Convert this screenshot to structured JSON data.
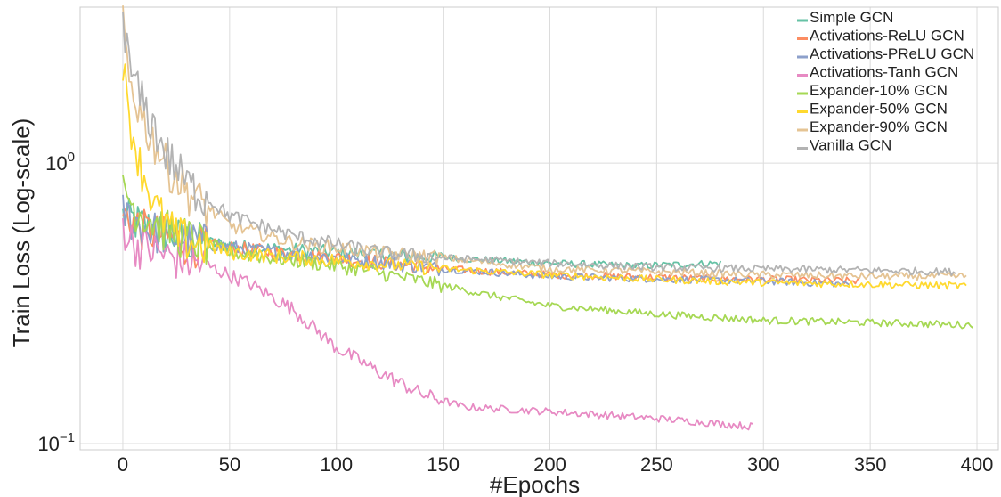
{
  "chart_data": {
    "type": "line",
    "title": "",
    "xlabel": "#Epochs",
    "ylabel": "Train Loss (Log-scale)",
    "xlim": [
      -20,
      410
    ],
    "ylim": [
      0.095,
      3.6
    ],
    "yscale": "log",
    "grid": true,
    "legend_position": "top-right",
    "x_ticks": [
      0,
      50,
      100,
      150,
      200,
      250,
      300,
      350,
      400
    ],
    "x_tick_labels": [
      "0",
      "50",
      "100",
      "150",
      "200",
      "250",
      "300",
      "350",
      "400"
    ],
    "y_ticks": [
      1,
      0.1
    ],
    "y_tick_labels": [
      {
        "base": "10",
        "exp": "0"
      },
      {
        "base": "10",
        "exp": "−1"
      }
    ],
    "series": [
      {
        "name": "Simple GCN",
        "color": "#66c2a5",
        "last_epoch": 280,
        "points": [
          [
            0,
            0.65
          ],
          [
            10,
            0.6
          ],
          [
            30,
            0.53
          ],
          [
            60,
            0.5
          ],
          [
            100,
            0.48
          ],
          [
            150,
            0.46
          ],
          [
            200,
            0.44
          ],
          [
            240,
            0.43
          ],
          [
            280,
            0.44
          ]
        ]
      },
      {
        "name": "Activations-ReLU GCN",
        "color": "#fc8d62",
        "last_epoch": 345,
        "points": [
          [
            0,
            0.66
          ],
          [
            10,
            0.58
          ],
          [
            30,
            0.52
          ],
          [
            60,
            0.49
          ],
          [
            100,
            0.46
          ],
          [
            150,
            0.42
          ],
          [
            200,
            0.4
          ],
          [
            260,
            0.39
          ],
          [
            300,
            0.385
          ],
          [
            345,
            0.38
          ]
        ]
      },
      {
        "name": "Activations-PReLU GCN",
        "color": "#8da0cb",
        "last_epoch": 340,
        "points": [
          [
            0,
            0.67
          ],
          [
            10,
            0.59
          ],
          [
            30,
            0.53
          ],
          [
            60,
            0.49
          ],
          [
            100,
            0.46
          ],
          [
            150,
            0.42
          ],
          [
            200,
            0.395
          ],
          [
            260,
            0.385
          ],
          [
            300,
            0.38
          ],
          [
            340,
            0.37
          ]
        ]
      },
      {
        "name": "Activations-Tanh GCN",
        "color": "#e78ac3",
        "last_epoch": 295,
        "points": [
          [
            0,
            0.6
          ],
          [
            5,
            0.52
          ],
          [
            20,
            0.47
          ],
          [
            40,
            0.43
          ],
          [
            60,
            0.37
          ],
          [
            80,
            0.3
          ],
          [
            100,
            0.22
          ],
          [
            120,
            0.18
          ],
          [
            140,
            0.15
          ],
          [
            160,
            0.135
          ],
          [
            200,
            0.13
          ],
          [
            250,
            0.123
          ],
          [
            295,
            0.115
          ]
        ]
      },
      {
        "name": "Expander-10% GCN",
        "color": "#a6d854",
        "last_epoch": 398,
        "points": [
          [
            0,
            0.85
          ],
          [
            5,
            0.7
          ],
          [
            20,
            0.58
          ],
          [
            50,
            0.48
          ],
          [
            80,
            0.45
          ],
          [
            110,
            0.42
          ],
          [
            140,
            0.38
          ],
          [
            170,
            0.34
          ],
          [
            200,
            0.31
          ],
          [
            250,
            0.29
          ],
          [
            300,
            0.275
          ],
          [
            350,
            0.27
          ],
          [
            398,
            0.265
          ]
        ]
      },
      {
        "name": "Expander-50% GCN",
        "color": "#ffd92f",
        "last_epoch": 395,
        "points": [
          [
            0,
            2.4
          ],
          [
            2,
            1.6
          ],
          [
            8,
            1.0
          ],
          [
            15,
            0.7
          ],
          [
            25,
            0.55
          ],
          [
            50,
            0.48
          ],
          [
            100,
            0.45
          ],
          [
            150,
            0.42
          ],
          [
            200,
            0.4
          ],
          [
            250,
            0.385
          ],
          [
            300,
            0.375
          ],
          [
            350,
            0.37
          ],
          [
            395,
            0.365
          ]
        ]
      },
      {
        "name": "Expander-90% GCN",
        "color": "#e5c494",
        "last_epoch": 395,
        "points": [
          [
            0,
            3.1
          ],
          [
            3,
            2.0
          ],
          [
            10,
            1.4
          ],
          [
            20,
            1.0
          ],
          [
            30,
            0.8
          ],
          [
            50,
            0.6
          ],
          [
            80,
            0.52
          ],
          [
            120,
            0.48
          ],
          [
            150,
            0.46
          ],
          [
            200,
            0.42
          ],
          [
            250,
            0.41
          ],
          [
            300,
            0.4
          ],
          [
            350,
            0.395
          ],
          [
            395,
            0.395
          ]
        ]
      },
      {
        "name": "Vanilla GCN",
        "color": "#b3b3b3",
        "last_epoch": 390,
        "points": [
          [
            0,
            3.5
          ],
          [
            3,
            2.2
          ],
          [
            10,
            1.6
          ],
          [
            20,
            1.1
          ],
          [
            30,
            0.85
          ],
          [
            50,
            0.65
          ],
          [
            80,
            0.55
          ],
          [
            120,
            0.48
          ],
          [
            150,
            0.46
          ],
          [
            200,
            0.44
          ],
          [
            250,
            0.425
          ],
          [
            300,
            0.42
          ],
          [
            350,
            0.415
          ],
          [
            390,
            0.41
          ]
        ]
      }
    ]
  }
}
